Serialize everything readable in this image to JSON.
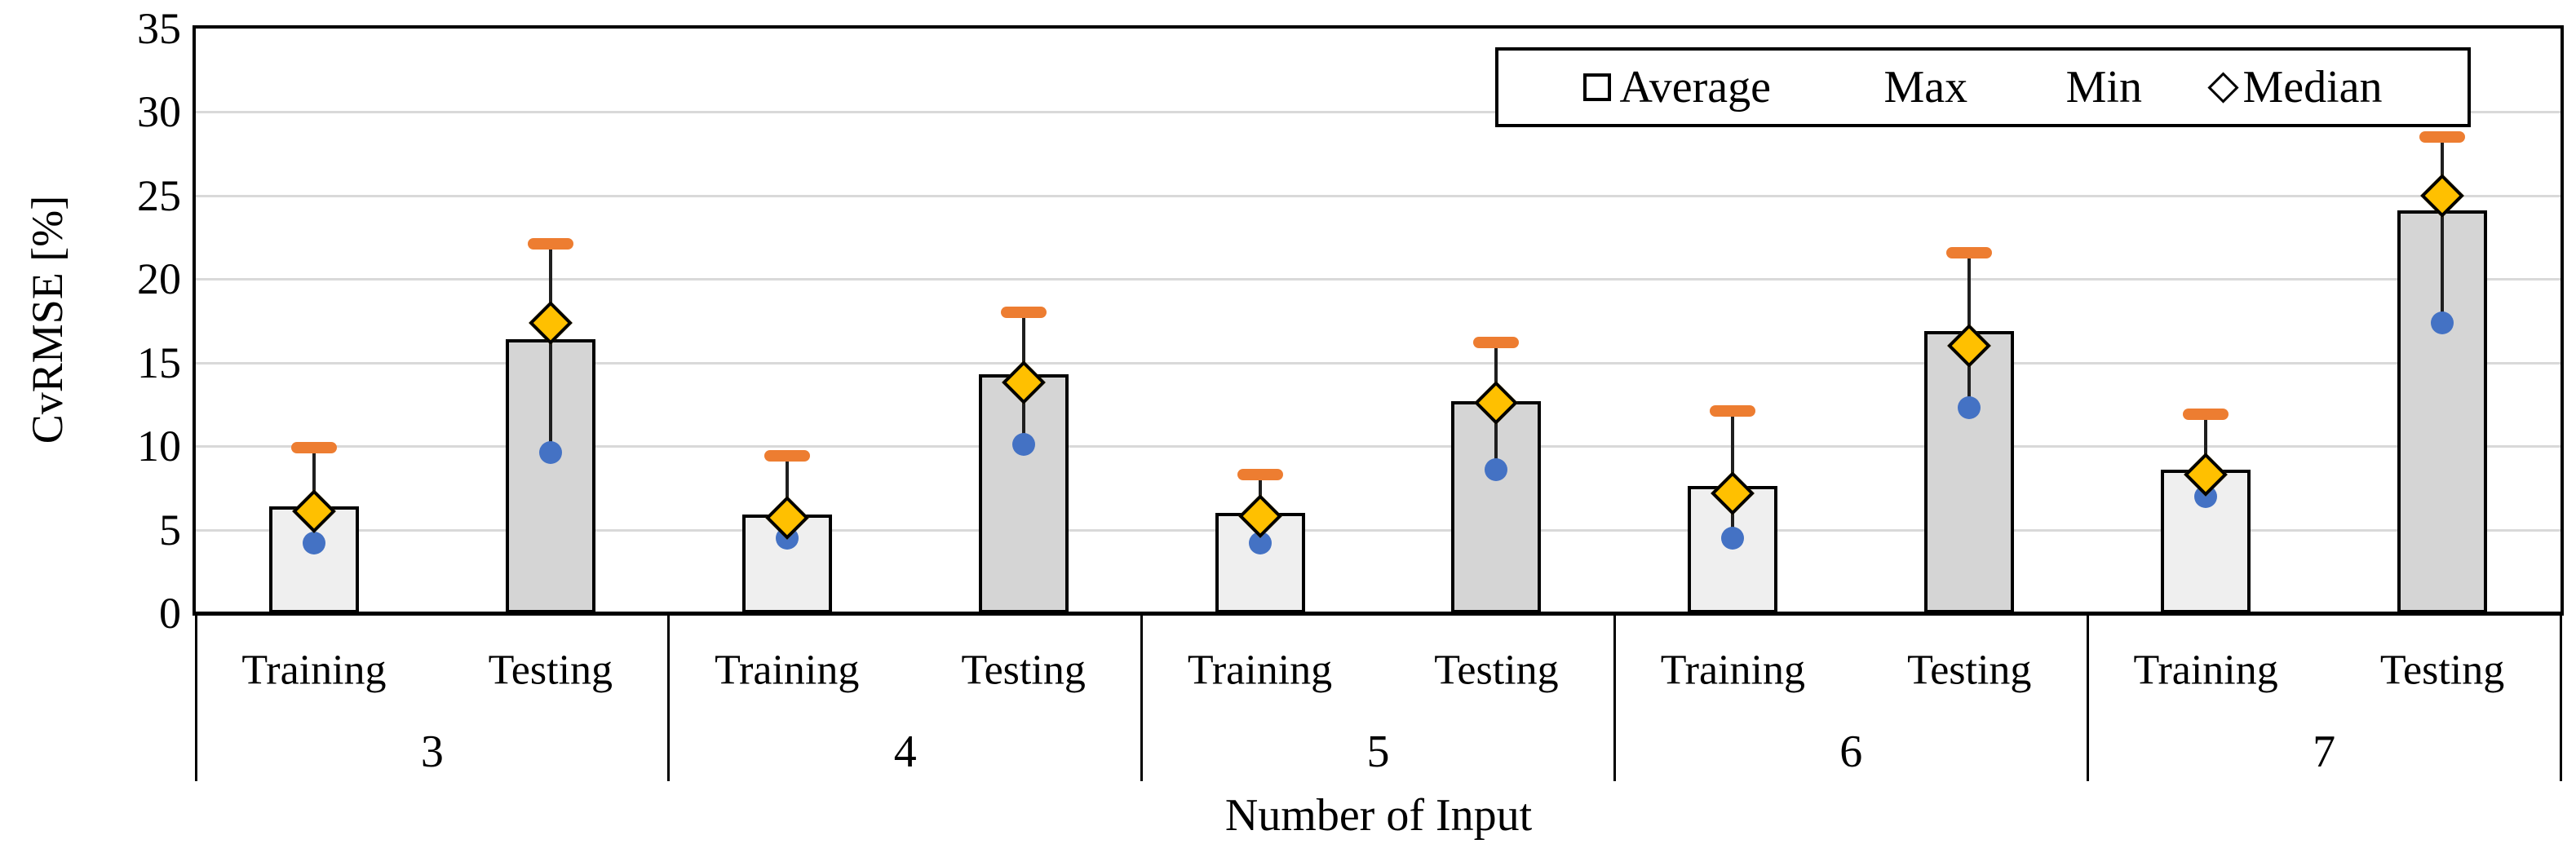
{
  "chart_data": {
    "type": "bar",
    "title": "",
    "xlabel": "Number of Input",
    "ylabel": "CvRMSE [%]",
    "ylim": [
      0,
      35
    ],
    "yticks": [
      0,
      5,
      10,
      15,
      20,
      25,
      30,
      35
    ],
    "grid": true,
    "legend_position": "top-right",
    "legend": [
      {
        "label": "Average",
        "marker": "white-square"
      },
      {
        "label": "Max",
        "marker": "orange-dash"
      },
      {
        "label": "Min",
        "marker": "blue-dot"
      },
      {
        "label": "Median",
        "marker": "gold-diamond"
      }
    ],
    "groups": [
      "3",
      "4",
      "5",
      "6",
      "7"
    ],
    "sub_categories": [
      "Training",
      "Testing"
    ],
    "data": [
      {
        "group": "3",
        "sub": "Training",
        "average": 6.4,
        "max": 9.9,
        "min": 4.2,
        "median": 6.1
      },
      {
        "group": "3",
        "sub": "Testing",
        "average": 16.4,
        "max": 22.1,
        "min": 9.6,
        "median": 17.4
      },
      {
        "group": "4",
        "sub": "Training",
        "average": 5.9,
        "max": 9.4,
        "min": 4.5,
        "median": 5.7
      },
      {
        "group": "4",
        "sub": "Testing",
        "average": 14.3,
        "max": 18.0,
        "min": 10.1,
        "median": 13.8
      },
      {
        "group": "5",
        "sub": "Training",
        "average": 6.0,
        "max": 8.3,
        "min": 4.2,
        "median": 5.8
      },
      {
        "group": "5",
        "sub": "Testing",
        "average": 12.7,
        "max": 16.2,
        "min": 8.6,
        "median": 12.6
      },
      {
        "group": "6",
        "sub": "Training",
        "average": 7.6,
        "max": 12.1,
        "min": 4.5,
        "median": 7.2
      },
      {
        "group": "6",
        "sub": "Testing",
        "average": 16.9,
        "max": 21.6,
        "min": 12.3,
        "median": 16.0
      },
      {
        "group": "7",
        "sub": "Training",
        "average": 8.6,
        "max": 11.9,
        "min": 7.0,
        "median": 8.3
      },
      {
        "group": "7",
        "sub": "Testing",
        "average": 24.1,
        "max": 28.5,
        "min": 17.4,
        "median": 25.0
      }
    ],
    "colors": {
      "training_bar_fill": "#EFEFEF",
      "testing_bar_fill": "#D5D5D5",
      "bar_border": "#000000",
      "max_marker": "#ED7D31",
      "min_marker": "#4472C4",
      "median_marker": "#FFC000",
      "gridline": "#D9D9D9",
      "axis": "#000000",
      "error_bar": "#1F1F1F",
      "background": "#FFFFFF"
    }
  }
}
